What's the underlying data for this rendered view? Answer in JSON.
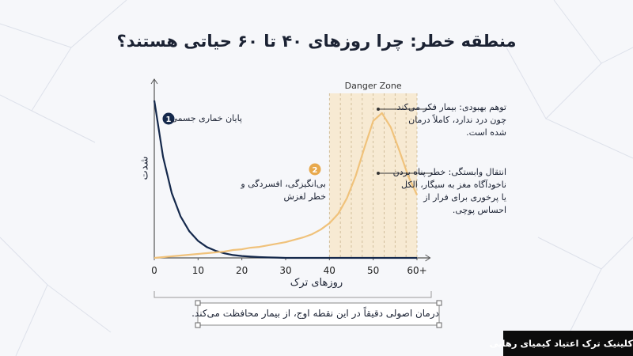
{
  "chart_data": {
    "type": "line",
    "title": "منطقه خطر: چرا روزهای ۴۰ تا ۶۰ حیاتی هستند؟",
    "x_label": "روزهای ترک",
    "y_label": "شدت",
    "x": [
      0,
      2,
      4,
      6,
      8,
      10,
      12,
      14,
      16,
      18,
      20,
      22,
      24,
      26,
      28,
      30,
      32,
      34,
      36,
      38,
      40,
      42,
      44,
      46,
      48,
      50,
      52,
      54,
      56,
      58,
      60
    ],
    "series": [
      {
        "color": "#14284b",
        "values": [
          100,
          64.1,
          41.1,
          26.4,
          16.9,
          10.8,
          6.9,
          4.5,
          2.9,
          1.8,
          1.2,
          0.8,
          0.5,
          0.3,
          0.2,
          0,
          0,
          0,
          0,
          0,
          0,
          0,
          0,
          0,
          0,
          0,
          0,
          0,
          0,
          0,
          0
        ]
      },
      {
        "color": "#f0c27b",
        "values": [
          0,
          0.5,
          1,
          1.5,
          2,
          2.5,
          3,
          3.5,
          4,
          5,
          5.5,
          6.5,
          7,
          8,
          9,
          10,
          11.5,
          13,
          15,
          18,
          22,
          28,
          38,
          52,
          70,
          87,
          92,
          83,
          68,
          52,
          40
        ]
      }
    ],
    "xlim": [
      0,
      63
    ],
    "ylim": [
      0,
      105
    ],
    "xticks": [
      0,
      10,
      20,
      30,
      40,
      50,
      {
        "value": 60,
        "label": "60+"
      }
    ],
    "danger_zone": {
      "label": "Danger Zone",
      "xrange": [
        40,
        60
      ]
    },
    "annotations": [
      {
        "number": "1",
        "lines": [
          "پایان خماری جسمی"
        ]
      },
      {
        "number": "2",
        "lines": [
          "بی‌انگیزگی، افسردگی و",
          "خطر لغزش"
        ]
      },
      {
        "lines": [
          "توهم بهبودی: بیمار فکر می‌کند",
          "چون درد ندارد، کاملاً درمان",
          "شده است."
        ]
      },
      {
        "lines": [
          "انتقال وابستگی: خطر پناه بردن",
          "ناخودآگاه مغز به سیگار، الکل",
          "یا پرخوری برای فرار از",
          "احساس پوچی."
        ]
      }
    ],
    "bottom_note": "درمان اصولی دقیقاً در این نقطه اوج، از بیمار محافظت می‌کند."
  },
  "brand": "کلینیک ترک اعتیاد کیمیای رهایی"
}
